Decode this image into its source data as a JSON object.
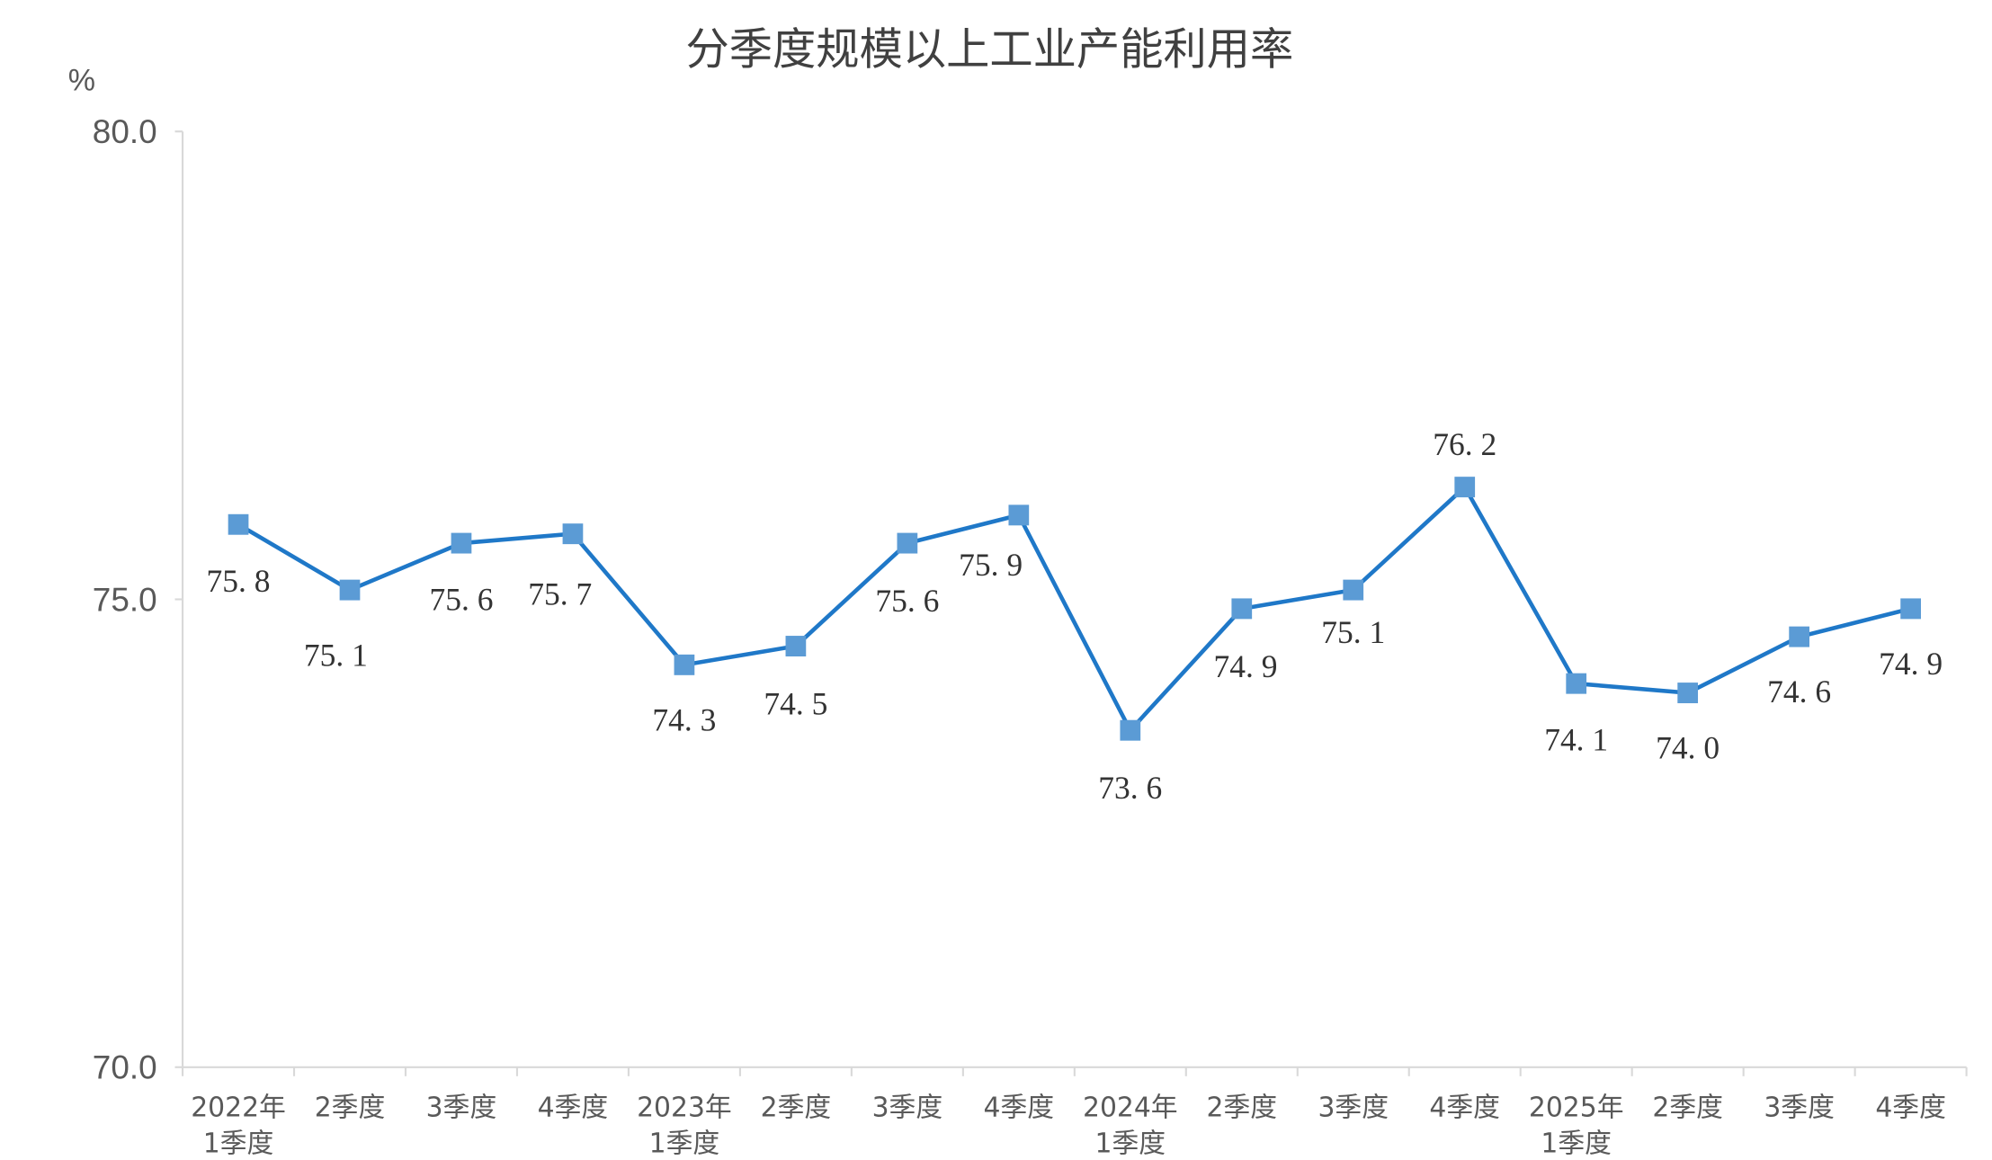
{
  "chart_data": {
    "type": "line",
    "title": "分季度规模以上工业产能利用率",
    "ylabel": "%",
    "ylim": [
      70.0,
      80.0
    ],
    "yticks": [
      "80.0",
      "75.0",
      "70.0"
    ],
    "grid": false,
    "categories": [
      [
        "2022年",
        "1季度"
      ],
      [
        "2季度"
      ],
      [
        "3季度"
      ],
      [
        "4季度"
      ],
      [
        "2023年",
        "1季度"
      ],
      [
        "2季度"
      ],
      [
        "3季度"
      ],
      [
        "4季度"
      ],
      [
        "2024年",
        "1季度"
      ],
      [
        "2季度"
      ],
      [
        "3季度"
      ],
      [
        "4季度"
      ],
      [
        "2025年",
        "1季度"
      ],
      [
        "2季度"
      ],
      [
        "3季度"
      ],
      [
        "4季度"
      ]
    ],
    "values": [
      75.8,
      75.1,
      75.6,
      75.7,
      74.3,
      74.5,
      75.6,
      75.9,
      73.6,
      74.9,
      75.1,
      76.2,
      74.1,
      74.0,
      74.6,
      74.9
    ],
    "data_labels": [
      "75.8",
      "75.1",
      "75.6",
      "75.7",
      "74.3",
      "74.5",
      "75.6",
      "75.9",
      "73.6",
      "74.9",
      "75.1",
      "76.2",
      "74.1",
      "74.0",
      "74.6",
      "74.9"
    ],
    "colors": {
      "line": "#1f78c8",
      "marker": "#5b9bd5",
      "axis": "#d9d9d9"
    }
  }
}
